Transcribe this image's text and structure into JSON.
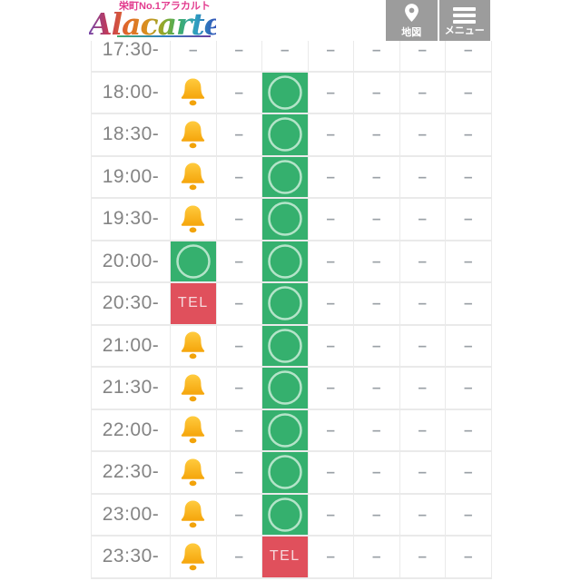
{
  "header": {
    "logo": {
      "tagline": "栄町No.1アラカルト",
      "brand": "Álacarte"
    },
    "map_button": {
      "label": "地図",
      "icon": "map-pin-icon"
    },
    "menu_button": {
      "label": "メニュー",
      "icon": "hamburger-icon"
    }
  },
  "colors": {
    "available_green": "#35b06e",
    "tel_red": "#e0505c",
    "bell_amber": "#fcb813",
    "bell_amber_dark": "#f2a30a",
    "ring_green": "#b4e4c9",
    "accent_pink": "#e23b8e",
    "button_gray": "#9c9c9c",
    "dash_gray": "#9aa0a6",
    "time_gray": "#848484",
    "border_gray": "#eaeaea"
  },
  "schedule": {
    "tel_label": "TEL",
    "dash_char": "–",
    "icons": {
      "bell": "bell-icon",
      "circle": "available-circle-icon"
    },
    "rows": [
      {
        "time": "17:30-",
        "cells": [
          "dash",
          "dash",
          "dash",
          "dash",
          "dash",
          "dash",
          "dash"
        ]
      },
      {
        "time": "18:00-",
        "cells": [
          "bell",
          "dash",
          "circle",
          "dash",
          "dash",
          "dash",
          "dash"
        ]
      },
      {
        "time": "18:30-",
        "cells": [
          "bell",
          "dash",
          "circle",
          "dash",
          "dash",
          "dash",
          "dash"
        ]
      },
      {
        "time": "19:00-",
        "cells": [
          "bell",
          "dash",
          "circle",
          "dash",
          "dash",
          "dash",
          "dash"
        ]
      },
      {
        "time": "19:30-",
        "cells": [
          "bell",
          "dash",
          "circle",
          "dash",
          "dash",
          "dash",
          "dash"
        ]
      },
      {
        "time": "20:00-",
        "cells": [
          "circle",
          "dash",
          "circle",
          "dash",
          "dash",
          "dash",
          "dash"
        ]
      },
      {
        "time": "20:30-",
        "cells": [
          "tel",
          "dash",
          "circle",
          "dash",
          "dash",
          "dash",
          "dash"
        ]
      },
      {
        "time": "21:00-",
        "cells": [
          "bell",
          "dash",
          "circle",
          "dash",
          "dash",
          "dash",
          "dash"
        ]
      },
      {
        "time": "21:30-",
        "cells": [
          "bell",
          "dash",
          "circle",
          "dash",
          "dash",
          "dash",
          "dash"
        ]
      },
      {
        "time": "22:00-",
        "cells": [
          "bell",
          "dash",
          "circle",
          "dash",
          "dash",
          "dash",
          "dash"
        ]
      },
      {
        "time": "22:30-",
        "cells": [
          "bell",
          "dash",
          "circle",
          "dash",
          "dash",
          "dash",
          "dash"
        ]
      },
      {
        "time": "23:00-",
        "cells": [
          "bell",
          "dash",
          "circle",
          "dash",
          "dash",
          "dash",
          "dash"
        ]
      },
      {
        "time": "23:30-",
        "cells": [
          "bell",
          "dash",
          "tel",
          "dash",
          "dash",
          "dash",
          "dash"
        ]
      }
    ]
  }
}
